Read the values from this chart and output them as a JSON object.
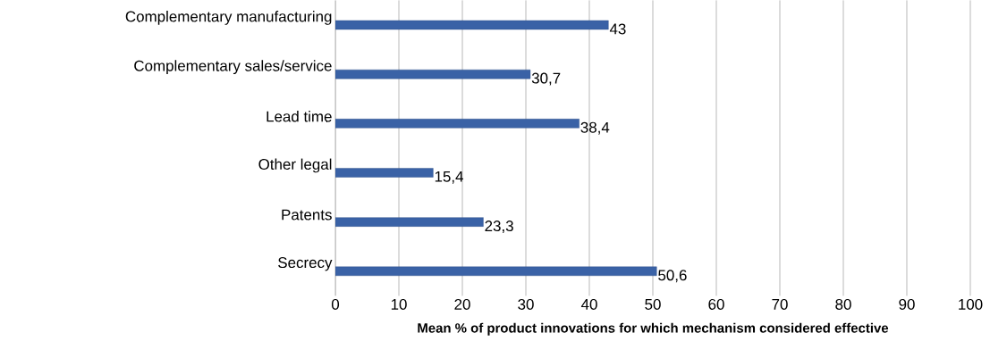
{
  "chart_data": {
    "type": "bar",
    "orientation": "horizontal",
    "xlabel": "Mean % of product innovations for which mechanism considered effective",
    "categories": [
      "Complementary manufacturing",
      "Complementary sales/service",
      "Lead time",
      "Other legal",
      "Patents",
      "Secrecy"
    ],
    "values": [
      43,
      30.7,
      38.4,
      15.4,
      23.3,
      50.6
    ],
    "value_labels": [
      "43",
      "30,7",
      "38,4",
      "15,4",
      "23,3",
      "50,6"
    ],
    "color": "#3a62a6",
    "xlim": [
      0,
      100
    ],
    "xticks": [
      0,
      10,
      20,
      30,
      40,
      50,
      60,
      70,
      80,
      90,
      100
    ],
    "grid": "x"
  }
}
